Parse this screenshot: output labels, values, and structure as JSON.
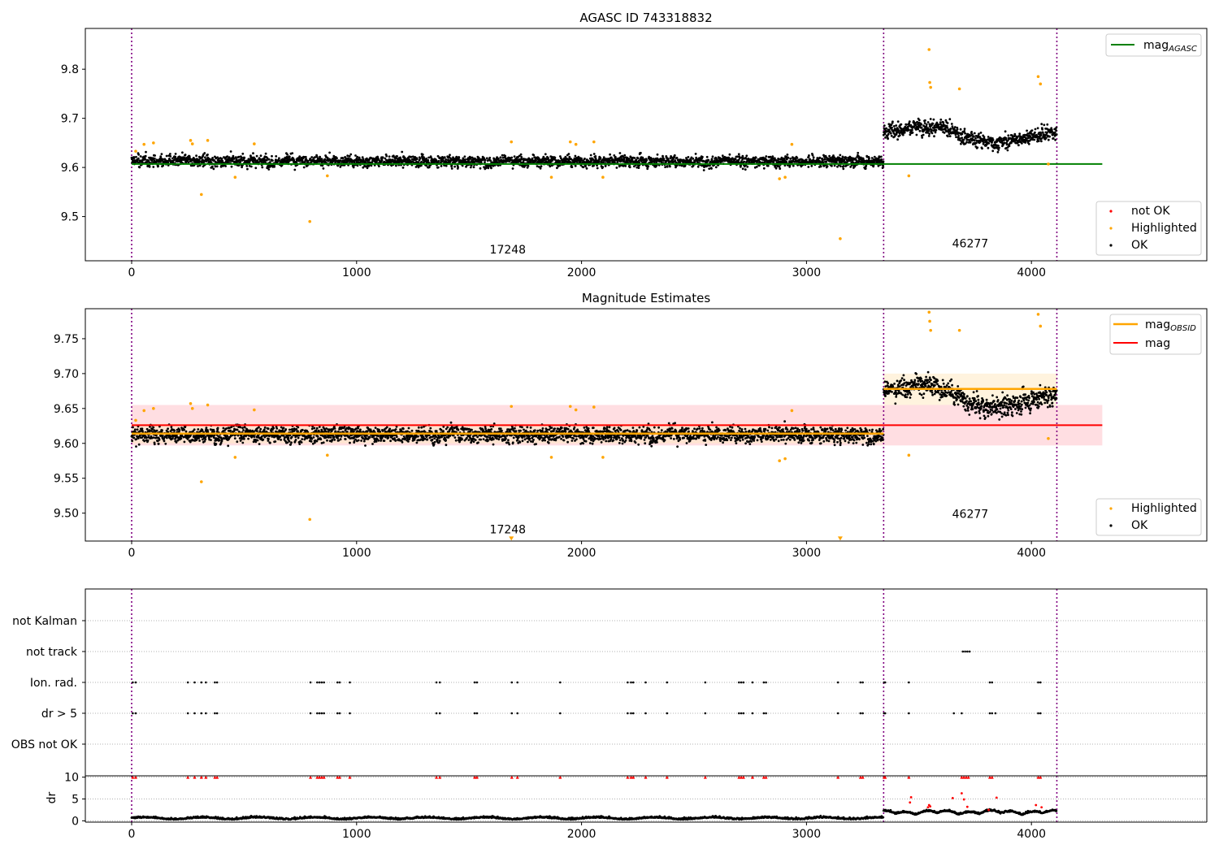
{
  "figure_title": "AGASC ID 743318832",
  "colors": {
    "ok": "#000000",
    "highlighted": "#ffa500",
    "not_ok": "#ff0000",
    "mag_agasc": "#008000",
    "mag": "#ff0000",
    "mag_obsid": "#ffa500",
    "obsid_boundary": "#800080",
    "flag_grid": "#b0b0b0"
  },
  "chart_data": [
    {
      "type": "scatter",
      "title": "AGASC ID 743318832",
      "xlim": [
        -200,
        4800
      ],
      "ylim": [
        9.41,
        9.883
      ],
      "xticks": [
        0,
        1000,
        2000,
        3000,
        4000
      ],
      "yticks": [
        9.5,
        9.6,
        9.7,
        9.8
      ],
      "obsid_boundaries": [
        0,
        3343,
        4113
      ],
      "obsid_labels": [
        {
          "text": "17248",
          "x": 1672,
          "y": 9.425
        },
        {
          "text": "46277",
          "x": 3728,
          "y": 9.437
        }
      ],
      "mag_agasc": {
        "value": 9.607,
        "x_range": [
          0,
          4315
        ]
      },
      "legend_upper": {
        "position": "upper right",
        "entries": [
          {
            "label": "mag",
            "sub": "AGASC"
          }
        ]
      },
      "legend_lower": {
        "position": "lower right",
        "entries": [
          "not OK",
          "Highlighted",
          "OK"
        ]
      },
      "ok_segments": [
        {
          "x_range": [
            0,
            3343
          ],
          "mean": 9.613,
          "spread": 0.014
        },
        {
          "x_range": [
            3343,
            4113
          ],
          "mean": 9.678,
          "spread": 0.018
        }
      ],
      "highlighted_points": [
        [
          18,
          9.633
        ],
        [
          55,
          9.647
        ],
        [
          97,
          9.65
        ],
        [
          262,
          9.655
        ],
        [
          270,
          9.648
        ],
        [
          310,
          9.545
        ],
        [
          338,
          9.655
        ],
        [
          460,
          9.58
        ],
        [
          545,
          9.648
        ],
        [
          792,
          9.49
        ],
        [
          870,
          9.583
        ],
        [
          1688,
          9.652
        ],
        [
          1866,
          9.58
        ],
        [
          1950,
          9.652
        ],
        [
          1975,
          9.647
        ],
        [
          2055,
          9.652
        ],
        [
          2095,
          9.58
        ],
        [
          2880,
          9.577
        ],
        [
          2905,
          9.58
        ],
        [
          2935,
          9.647
        ],
        [
          3150,
          9.455
        ],
        [
          3455,
          9.583
        ],
        [
          3545,
          9.84
        ],
        [
          3548,
          9.773
        ],
        [
          3552,
          9.763
        ],
        [
          3680,
          9.76
        ],
        [
          4030,
          9.785
        ],
        [
          4040,
          9.77
        ],
        [
          4075,
          9.607
        ]
      ]
    },
    {
      "type": "scatter",
      "title": "Magnitude Estimates",
      "xlim": [
        -200,
        4800
      ],
      "ylim": [
        9.46,
        9.793
      ],
      "xticks": [
        0,
        1000,
        2000,
        3000,
        4000
      ],
      "yticks": [
        9.5,
        9.55,
        9.6,
        9.65,
        9.7,
        9.75
      ],
      "obsid_boundaries": [
        0,
        3343,
        4113
      ],
      "obsid_labels": [
        {
          "text": "17248",
          "x": 1672,
          "y": 9.471
        },
        {
          "text": "46277",
          "x": 3728,
          "y": 9.493
        }
      ],
      "mag": {
        "value": 9.626,
        "band": [
          9.597,
          9.655
        ],
        "x_range": [
          0,
          4315
        ]
      },
      "mag_obsid": [
        {
          "x_range": [
            0,
            3343
          ],
          "value": 9.614,
          "band": [
            9.6,
            9.628
          ]
        },
        {
          "x_range": [
            3343,
            4113
          ],
          "value": 9.678,
          "band": [
            9.655,
            9.7
          ]
        }
      ],
      "legend_upper": {
        "position": "upper right",
        "entries": [
          {
            "label": "mag",
            "sub": "OBSID"
          },
          {
            "label": "mag",
            "sub": ""
          }
        ]
      },
      "legend_lower": {
        "position": "lower right",
        "entries": [
          "Highlighted",
          "OK"
        ]
      },
      "ok_segments": [
        {
          "x_range": [
            0,
            3343
          ],
          "mean": 9.613,
          "spread": 0.014
        },
        {
          "x_range": [
            3343,
            4113
          ],
          "mean": 9.678,
          "spread": 0.018
        }
      ],
      "highlighted_points": [
        [
          18,
          9.633
        ],
        [
          55,
          9.647
        ],
        [
          97,
          9.65
        ],
        [
          262,
          9.657
        ],
        [
          270,
          9.65
        ],
        [
          310,
          9.545
        ],
        [
          338,
          9.655
        ],
        [
          460,
          9.58
        ],
        [
          545,
          9.648
        ],
        [
          792,
          9.491
        ],
        [
          870,
          9.583
        ],
        [
          1688,
          9.653
        ],
        [
          1866,
          9.58
        ],
        [
          1950,
          9.653
        ],
        [
          1975,
          9.648
        ],
        [
          2055,
          9.652
        ],
        [
          2095,
          9.58
        ],
        [
          2880,
          9.575
        ],
        [
          2905,
          9.578
        ],
        [
          2935,
          9.647
        ],
        [
          3455,
          9.583
        ],
        [
          3545,
          9.788
        ],
        [
          3548,
          9.775
        ],
        [
          3552,
          9.762
        ],
        [
          3680,
          9.762
        ],
        [
          4030,
          9.785
        ],
        [
          4040,
          9.768
        ],
        [
          4075,
          9.607
        ]
      ],
      "offscale_markers": [
        [
          1688,
          9.463
        ],
        [
          3150,
          9.463
        ]
      ]
    },
    {
      "type": "scatter",
      "title": "",
      "xlim": [
        -200,
        4800
      ],
      "categories": [
        "OBS not OK",
        "dr > 5",
        "Ion. rad.",
        "not track",
        "not Kalman"
      ],
      "obsid_boundaries": [
        0,
        3343,
        4113
      ],
      "flag_x": {
        "dr > 5": [
          5,
          18,
          250,
          280,
          310,
          330,
          370,
          380,
          795,
          825,
          835,
          845,
          855,
          915,
          925,
          970,
          1355,
          1370,
          1525,
          1535,
          1690,
          1715,
          1905,
          2205,
          2220,
          2230,
          2285,
          2380,
          2550,
          2700,
          2710,
          2720,
          2760,
          2810,
          2820,
          3140,
          3240,
          3250,
          3345,
          3350,
          3455,
          3655,
          3690,
          3815,
          3825,
          3840,
          4030,
          4040
        ],
        "Ion. rad.": [
          5,
          18,
          250,
          280,
          310,
          330,
          370,
          380,
          795,
          825,
          835,
          845,
          855,
          915,
          925,
          970,
          1355,
          1370,
          1525,
          1535,
          1690,
          1715,
          1905,
          2205,
          2220,
          2230,
          2285,
          2380,
          2550,
          2700,
          2710,
          2720,
          2760,
          2810,
          2820,
          3140,
          3240,
          3250,
          3345,
          3350,
          3455,
          3815,
          3825,
          4030,
          4040
        ],
        "not track": [
          3695,
          3705,
          3715,
          3725
        ]
      }
    },
    {
      "type": "scatter",
      "title": "",
      "xlim": [
        -200,
        4800
      ],
      "ylim": [
        -0.3,
        10.3
      ],
      "yticks": [
        0,
        5,
        10
      ],
      "ylabel": "dr",
      "obsid_boundaries": [
        0,
        3343,
        4113
      ],
      "clipped_at": 10,
      "clipped_x": [
        5,
        18,
        250,
        280,
        310,
        330,
        370,
        380,
        795,
        825,
        835,
        845,
        855,
        915,
        925,
        970,
        1355,
        1370,
        1525,
        1535,
        1690,
        1715,
        1905,
        2205,
        2220,
        2230,
        2285,
        2380,
        2550,
        2700,
        2710,
        2720,
        2760,
        2810,
        2820,
        3140,
        3240,
        3250,
        3345,
        3350,
        3455,
        3690,
        3700,
        3710,
        3720,
        3815,
        3825,
        4030,
        4040
      ],
      "red_points": [
        [
          3460,
          4.2
        ],
        [
          3465,
          5.4
        ],
        [
          3540,
          3.1
        ],
        [
          3545,
          3.6
        ],
        [
          3550,
          3.3
        ],
        [
          3650,
          5.2
        ],
        [
          3690,
          6.3
        ],
        [
          3700,
          4.9
        ],
        [
          3715,
          3.2
        ],
        [
          3810,
          2.5
        ],
        [
          3845,
          5.3
        ],
        [
          4020,
          3.6
        ],
        [
          4045,
          3.1
        ]
      ],
      "ok_level": [
        {
          "x_range": [
            0,
            3343
          ],
          "mean": 0.5
        },
        {
          "x_range": [
            3343,
            4113
          ],
          "mean": 1.5
        }
      ]
    }
  ]
}
